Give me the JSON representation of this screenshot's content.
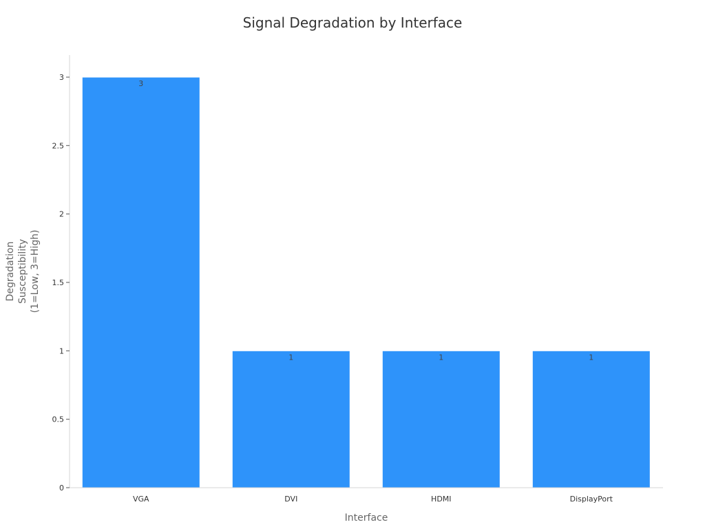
{
  "chart_data": {
    "type": "bar",
    "title": "Signal Degradation by Interface",
    "xlabel": "Interface",
    "ylabel_lines": [
      "Degradation",
      "Susceptibility",
      "(1=Low, 3=High)"
    ],
    "categories": [
      "VGA",
      "DVI",
      "HDMI",
      "DisplayPort"
    ],
    "values": [
      3,
      1,
      1,
      1
    ],
    "data_labels": [
      "3",
      "1",
      "1",
      "1"
    ],
    "ylim": [
      0,
      3
    ],
    "yticks": [
      0,
      0.5,
      1,
      1.5,
      2,
      2.5,
      3
    ],
    "ytick_labels": [
      "0",
      "0.5",
      "1",
      "1.5",
      "2",
      "2.5",
      "3"
    ],
    "bar_color": "#2E93FA",
    "grid": false,
    "legend": "none"
  }
}
